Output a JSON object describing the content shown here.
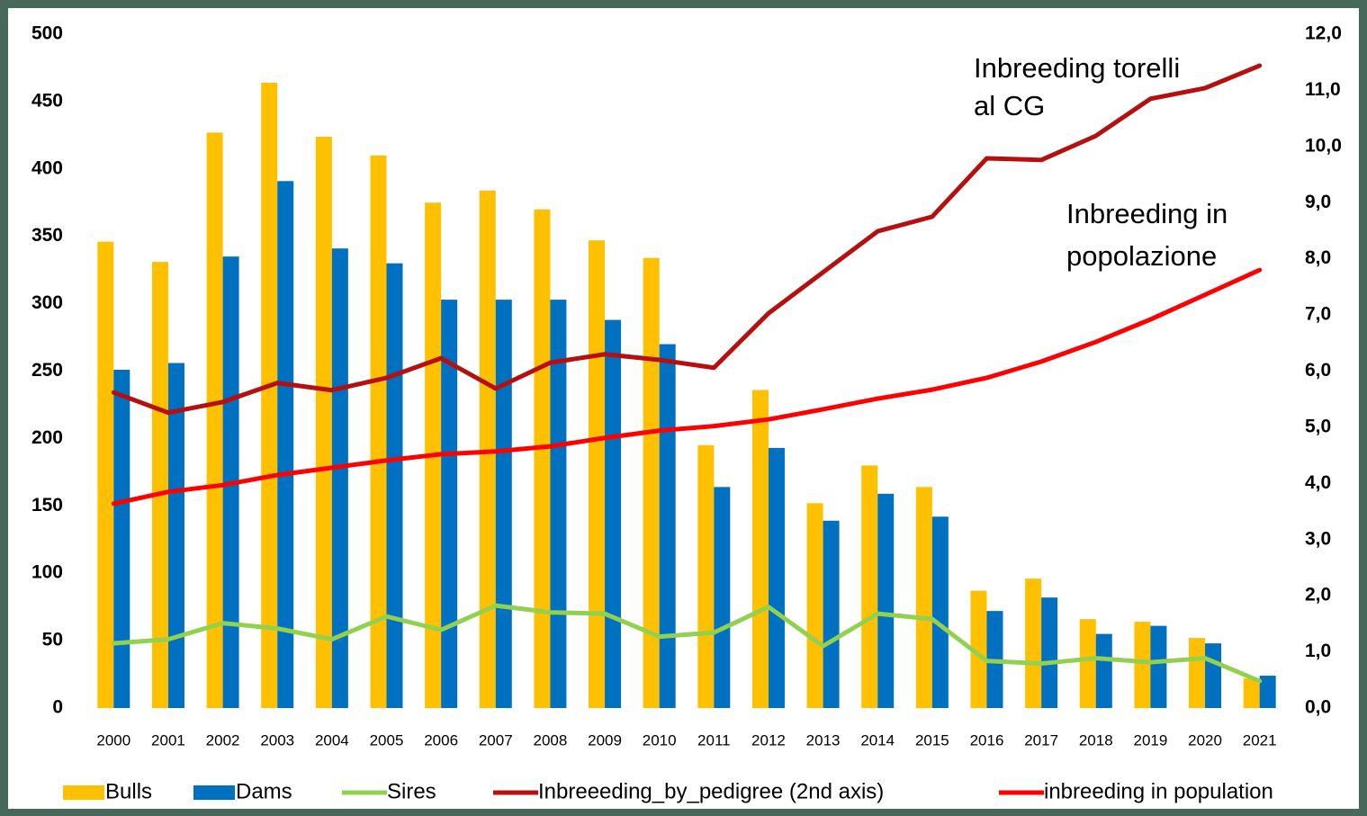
{
  "chart_data": {
    "type": "bar",
    "categories": [
      "2000",
      "2001",
      "2002",
      "2003",
      "2004",
      "2005",
      "2006",
      "2007",
      "2008",
      "2009",
      "2010",
      "2011",
      "2012",
      "2013",
      "2014",
      "2015",
      "2016",
      "2017",
      "2018",
      "2019",
      "2020",
      "2021"
    ],
    "series": [
      {
        "name": "Bulls",
        "type": "bar",
        "color": "#ffc000",
        "values": [
          346,
          331,
          427,
          464,
          424,
          410,
          375,
          384,
          370,
          347,
          334,
          195,
          236,
          152,
          180,
          164,
          87,
          96,
          66,
          64,
          52,
          22
        ]
      },
      {
        "name": "Dams",
        "type": "bar",
        "color": "#0070c0",
        "values": [
          251,
          256,
          335,
          391,
          341,
          330,
          303,
          303,
          303,
          288,
          270,
          164,
          193,
          139,
          159,
          142,
          72,
          82,
          55,
          61,
          48,
          24
        ]
      },
      {
        "name": "Sires",
        "type": "line",
        "color": "#92d050",
        "values": [
          48,
          51,
          63,
          59,
          51,
          68,
          58,
          76,
          71,
          70,
          53,
          56,
          75,
          46,
          70,
          66,
          35,
          33,
          37,
          34,
          37,
          20
        ]
      },
      {
        "name": "Inbreeeding_by_pedigree (2nd axis)",
        "type": "line",
        "axis": "y2",
        "color": "#b50f0f",
        "values": [
          5.62,
          5.26,
          5.45,
          5.79,
          5.66,
          5.88,
          6.23,
          5.69,
          6.15,
          6.3,
          6.2,
          6.06,
          7.03,
          7.76,
          8.49,
          8.75,
          9.79,
          9.76,
          10.19,
          10.85,
          11.04,
          11.44
        ]
      },
      {
        "name": "inbreeding in population",
        "type": "line",
        "axis": "y2",
        "color": "#ff0000",
        "values": [
          3.64,
          3.85,
          3.97,
          4.15,
          4.28,
          4.41,
          4.52,
          4.57,
          4.66,
          4.81,
          4.94,
          5.02,
          5.14,
          5.32,
          5.51,
          5.67,
          5.88,
          6.17,
          6.52,
          6.92,
          7.36,
          7.8
        ]
      }
    ],
    "annotations": [
      "Inbreeding torelli",
      "al CG",
      "Inbreeding in",
      "popolazione"
    ],
    "ylim": [
      0,
      500
    ],
    "yticks": [
      0,
      50,
      100,
      150,
      200,
      250,
      300,
      350,
      400,
      450,
      500
    ],
    "y2lim": [
      0,
      12
    ],
    "y2ticks": [
      {
        "value": 0,
        "label": "0,0"
      },
      {
        "value": 1,
        "label": "1,0"
      },
      {
        "value": 2,
        "label": "2,0"
      },
      {
        "value": 3,
        "label": "3,0"
      },
      {
        "value": 4,
        "label": "4,0"
      },
      {
        "value": 5,
        "label": "5,0"
      },
      {
        "value": 6,
        "label": "6,0"
      },
      {
        "value": 7,
        "label": "7,0"
      },
      {
        "value": 8,
        "label": "8,0"
      },
      {
        "value": 9,
        "label": "9,0"
      },
      {
        "value": 10,
        "label": "10,0"
      },
      {
        "value": 11,
        "label": "11,0"
      },
      {
        "value": 12,
        "label": "12,0"
      }
    ],
    "grid": false,
    "legend": "bottom"
  }
}
